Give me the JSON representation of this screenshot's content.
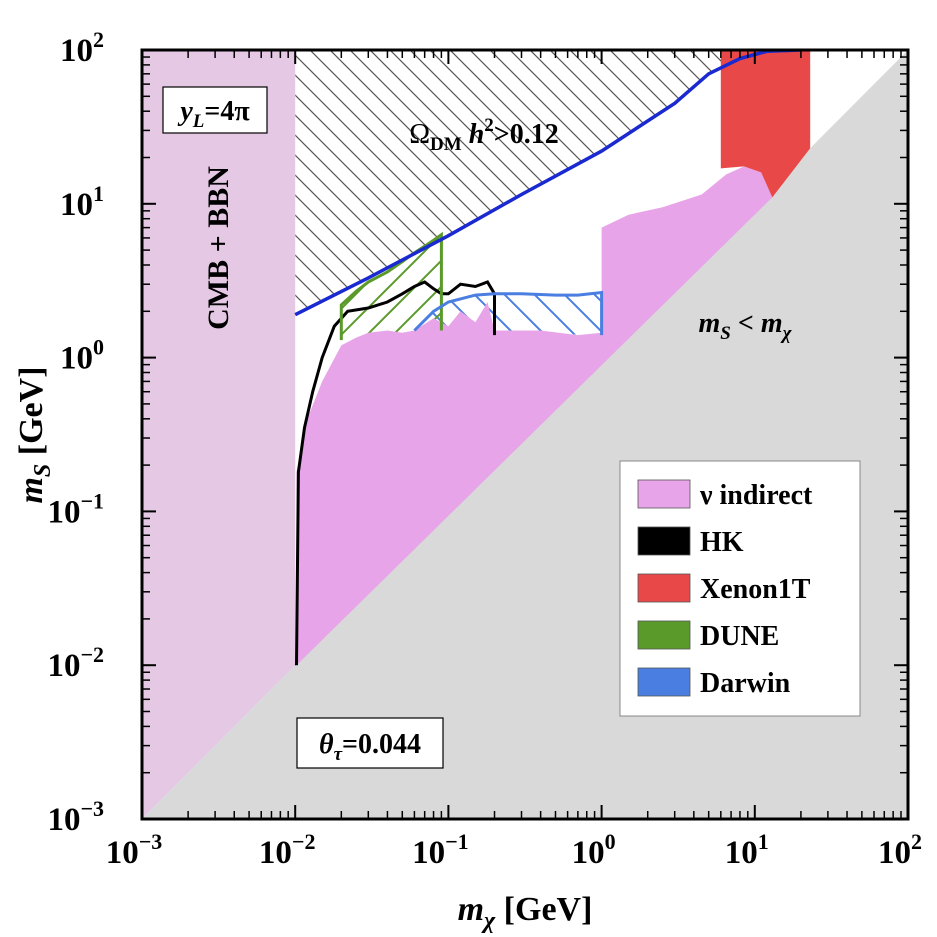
{
  "chart_data": {
    "type": "area",
    "xscale": "log",
    "yscale": "log",
    "xlim": [
      0.001,
      100
    ],
    "ylim": [
      0.001,
      100
    ],
    "xlabel": {
      "sym": "m",
      "sub": "χ",
      "unit": " [GeV]"
    },
    "ylabel": {
      "sym": "m",
      "sub": "S",
      "unit": " [GeV]"
    },
    "ticks": [
      {
        "base": "10",
        "exp": "−3",
        "value": 0.001
      },
      {
        "base": "10",
        "exp": "−2",
        "value": 0.01
      },
      {
        "base": "10",
        "exp": "−1",
        "value": 0.1
      },
      {
        "base": "10",
        "exp": "0",
        "value": 1
      },
      {
        "base": "10",
        "exp": "1",
        "value": 10
      },
      {
        "base": "10",
        "exp": "2",
        "value": 100
      }
    ],
    "annotations": {
      "coupling": {
        "sym": "y",
        "sub": "L",
        "rest": "=4π"
      },
      "mixing": {
        "sym": "θ",
        "sub": "τ",
        "rest": "=0.044"
      },
      "cmb": "CMB + BBN",
      "relic": {
        "sym": "Ω",
        "sub": "DM",
        "mid": " h",
        "sup": "2",
        "rest": ">0.12"
      },
      "forbidden": {
        "sym": "m",
        "sub": "S",
        "mid": " < ",
        "sym2": "m",
        "sub2": "χ"
      }
    },
    "legend": {
      "position": "lower-right",
      "entries": [
        {
          "label": "ν indirect",
          "color": "#e8a4e8"
        },
        {
          "label": "HK",
          "color": "#000000"
        },
        {
          "label": "Xenon1T",
          "color": "#e84848"
        },
        {
          "label": "DUNE",
          "color": "#5a9a2a"
        },
        {
          "label": "Darwin",
          "color": "#4a7ee0"
        }
      ]
    },
    "regions": {
      "cmb_bbn": {
        "color": "#e4c8e4",
        "x_max": 0.01
      },
      "forbidden": {
        "color": "#d9d9d9",
        "condition": "mS < mchi"
      },
      "nu_indirect": {
        "color": "#e8a4e8",
        "boundary": [
          [
            0.0102,
            0.01
          ],
          [
            0.0102,
            0.18
          ],
          [
            0.012,
            0.4
          ],
          [
            0.015,
            0.7
          ],
          [
            0.02,
            1.2
          ],
          [
            0.025,
            1.35
          ],
          [
            0.03,
            1.45
          ],
          [
            0.04,
            1.5
          ],
          [
            0.05,
            1.45
          ],
          [
            0.06,
            1.5
          ],
          [
            0.08,
            1.8
          ],
          [
            0.1,
            1.6
          ],
          [
            0.12,
            2.0
          ],
          [
            0.15,
            1.7
          ],
          [
            0.18,
            2.3
          ],
          [
            0.2,
            1.5
          ],
          [
            0.4,
            1.5
          ],
          [
            0.7,
            1.4
          ],
          [
            1.0,
            1.45
          ],
          [
            1.0,
            7.0
          ],
          [
            1.5,
            8.5
          ],
          [
            2.5,
            9.5
          ],
          [
            4.5,
            11.5
          ],
          [
            6.5,
            15.5
          ],
          [
            8.5,
            17.5
          ],
          [
            11,
            16
          ],
          [
            13,
            11
          ]
        ]
      },
      "xenon1t": {
        "color": "#e84848",
        "boundary": [
          [
            6,
            100
          ],
          [
            6,
            17
          ],
          [
            8.5,
            17.5
          ],
          [
            11,
            16
          ],
          [
            13,
            11
          ],
          [
            23,
            23
          ],
          [
            23,
            100
          ]
        ]
      },
      "relic_excluded": {
        "color": "#555555",
        "label": "hatched"
      }
    },
    "series": [
      {
        "name": "Relic density (Ω h² = 0.12)",
        "color": "#1a2ad0",
        "x": [
          0.01,
          0.03,
          0.1,
          0.3,
          1,
          3,
          5,
          8,
          12,
          20
        ],
        "y": [
          1.9,
          3.3,
          6.2,
          11.5,
          22,
          45,
          70,
          88,
          98,
          100
        ]
      },
      {
        "name": "HK",
        "color": "#000000",
        "x": [
          0.0105,
          0.0115,
          0.013,
          0.015,
          0.018,
          0.022,
          0.03,
          0.04,
          0.05,
          0.06,
          0.07,
          0.08,
          0.09,
          0.1,
          0.12,
          0.15,
          0.18,
          0.2,
          0.2
        ],
        "y": [
          0.18,
          0.35,
          0.6,
          1.0,
          1.6,
          2.0,
          2.1,
          2.3,
          2.6,
          2.9,
          3.1,
          2.8,
          2.6,
          2.6,
          3.0,
          2.9,
          3.1,
          2.6,
          1.4
        ]
      },
      {
        "name": "DUNE",
        "color": "#5a9a2a",
        "x": [
          0.02,
          0.02,
          0.025,
          0.03,
          0.04,
          0.05,
          0.06,
          0.07,
          0.08,
          0.09,
          0.09,
          0.09
        ],
        "y": [
          1.3,
          2.2,
          2.7,
          3.1,
          3.6,
          4.2,
          4.8,
          5.3,
          5.8,
          6.3,
          3.2,
          1.5
        ]
      },
      {
        "name": "Darwin",
        "color": "#4a7ee0",
        "x": [
          0.06,
          0.08,
          0.1,
          0.15,
          0.2,
          0.3,
          0.5,
          0.7,
          1.0,
          1.0
        ],
        "y": [
          1.5,
          2.0,
          2.3,
          2.55,
          2.6,
          2.6,
          2.55,
          2.55,
          2.65,
          1.4
        ]
      }
    ]
  }
}
